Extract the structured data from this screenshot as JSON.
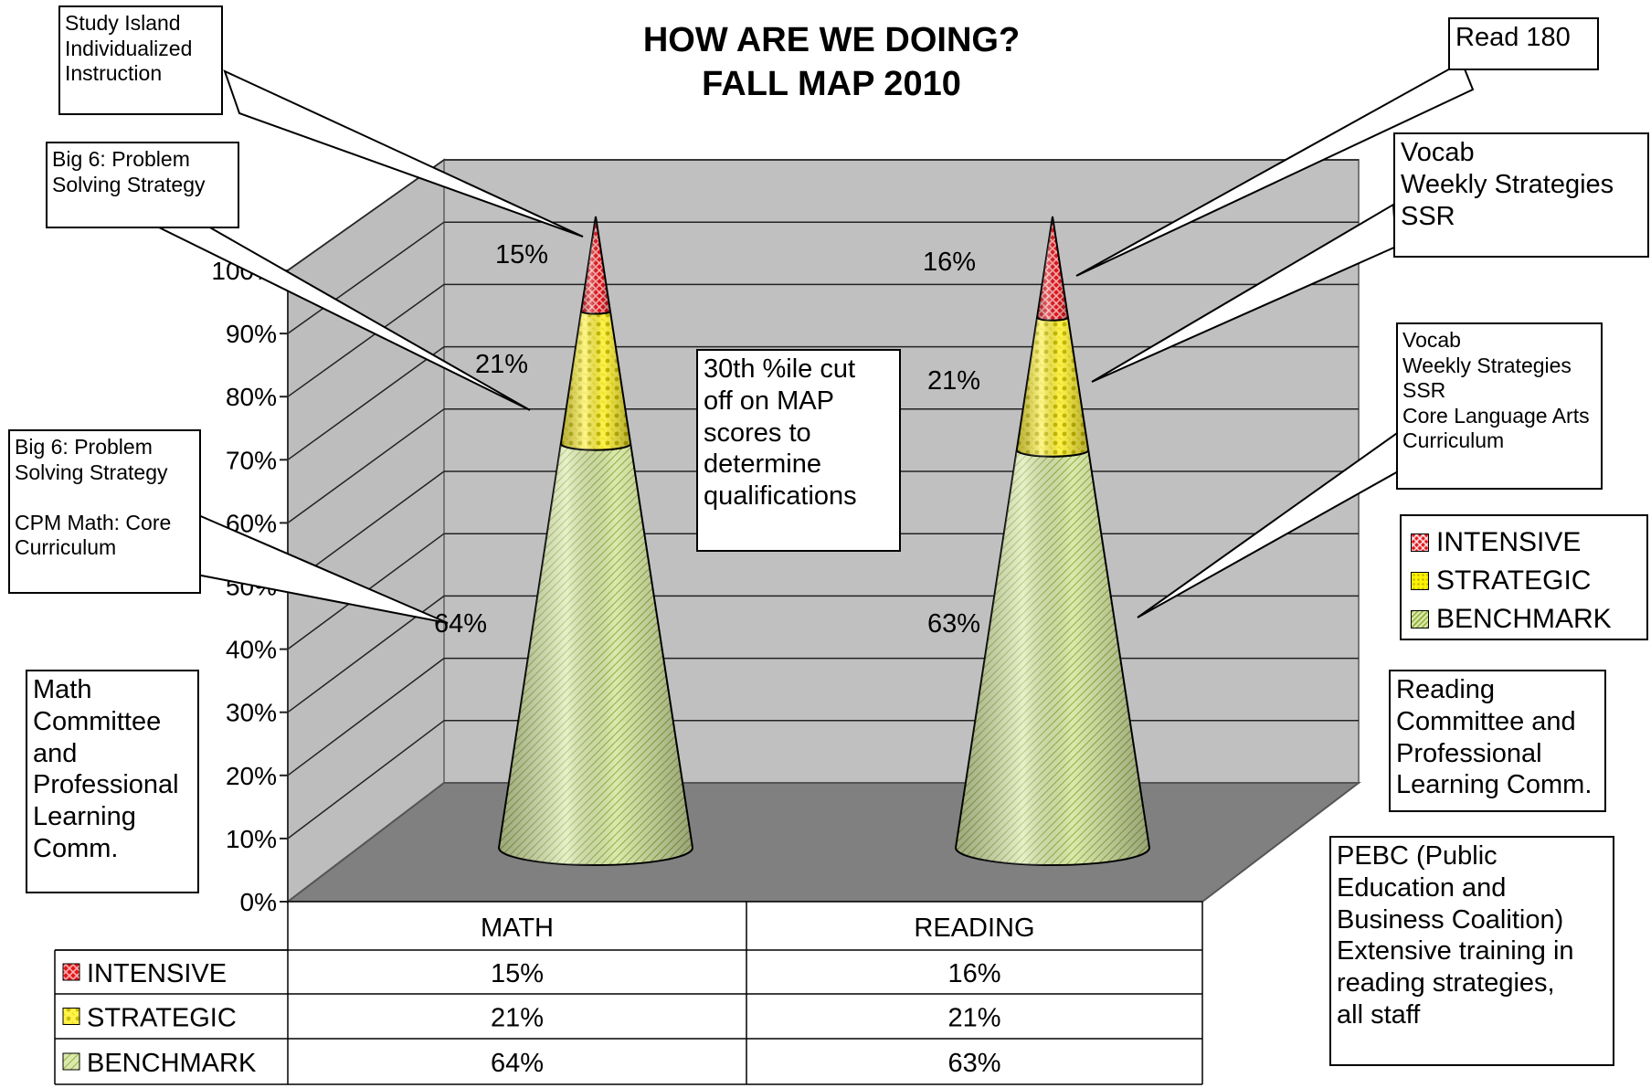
{
  "chart_data": {
    "type": "stacked-cone",
    "title": [
      "HOW ARE WE DOING?",
      "FALL MAP 2010"
    ],
    "categories": [
      "MATH",
      "READING"
    ],
    "series": [
      {
        "name": "BENCHMARK",
        "values": [
          64,
          63
        ],
        "labels": [
          "64%",
          "63%"
        ]
      },
      {
        "name": "STRATEGIC",
        "values": [
          21,
          21
        ],
        "labels": [
          "21%",
          "21%"
        ]
      },
      {
        "name": "INTENSIVE",
        "values": [
          15,
          16
        ],
        "labels": [
          "15%",
          "16%"
        ]
      }
    ],
    "y_ticks": [
      "0%",
      "10%",
      "20%",
      "30%",
      "40%",
      "50%",
      "60%",
      "70%",
      "80%",
      "90%",
      "100%"
    ],
    "ylim": [
      0,
      100
    ],
    "grid": true,
    "legend_position": "right",
    "data_table": {
      "rows": [
        {
          "name": "INTENSIVE",
          "values": [
            "15%",
            "16%"
          ]
        },
        {
          "name": "STRATEGIC",
          "values": [
            "21%",
            "21%"
          ]
        },
        {
          "name": "BENCHMARK",
          "values": [
            "64%",
            "63%"
          ]
        }
      ]
    },
    "colors": {
      "intensive": "#e3161c",
      "strategic": "#fff200",
      "benchmark": "#d9e8a8",
      "wall": "#c0c0c0",
      "floor": "#808080"
    }
  },
  "callouts": {
    "study_island": "Study Island\nIndividualized\nInstruction",
    "big6_top": "Big 6: Problem\nSolving Strategy",
    "big6_cpm": "Big 6: Problem\nSolving Strategy\n\nCPM Math: Core\nCurriculum",
    "math_committee": "Math\nCommittee\nand\nProfessional\nLearning\nComm.",
    "cutoff": "30th %ile cut\noff on MAP\nscores to\ndetermine\nqualifications",
    "read180": "Read 180",
    "vocab_top": "Vocab\nWeekly Strategies\nSSR",
    "vocab_core": "Vocab\nWeekly Strategies\nSSR\nCore Language Arts\nCurriculum",
    "reading_committee": "Reading\nCommittee and\nProfessional\nLearning Comm.",
    "pebc": "PEBC (Public\nEducation and\nBusiness Coalition)\nExtensive training in\nreading strategies,\nall staff"
  }
}
